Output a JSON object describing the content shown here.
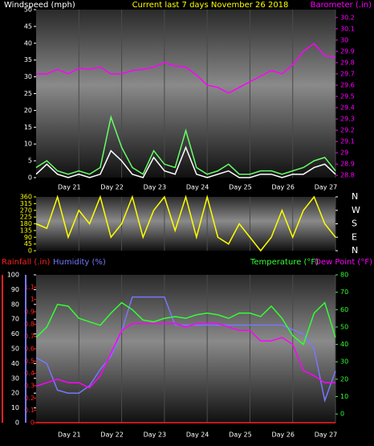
{
  "chart_data": [
    {
      "type": "line",
      "title": "Current last 7 days November 26 2018",
      "ylabel": "Windspeed (mph)",
      "x": [
        20,
        20.25,
        20.5,
        20.75,
        21,
        21.25,
        21.5,
        21.75,
        22,
        22.25,
        22.5,
        22.75,
        23,
        23.25,
        23.5,
        23.75,
        24,
        24.25,
        24.5,
        24.75,
        25,
        25.25,
        25.5,
        25.75,
        26,
        26.25,
        26.5,
        26.75,
        27
      ],
      "xlim": [
        20,
        27
      ],
      "xticks": [
        {
          "value": 21,
          "label": "Day 21"
        },
        {
          "value": 22,
          "label": "Day 22"
        },
        {
          "value": 23,
          "label": "Day 23"
        },
        {
          "value": 24,
          "label": "Day 24"
        },
        {
          "value": 25,
          "label": "Day 25"
        },
        {
          "value": 26,
          "label": "Day 26"
        },
        {
          "value": 27,
          "label": "Day 27"
        }
      ],
      "ylim": [
        0,
        50
      ],
      "yticks": [
        0,
        5,
        10,
        15,
        20,
        25,
        30,
        35,
        40,
        45,
        50
      ],
      "ycolor": "#ffffff",
      "y2lim": [
        28.78,
        30.27
      ],
      "y2ticks": [
        28.8,
        28.9,
        29,
        29.1,
        29.2,
        29.3,
        29.4,
        29.5,
        29.6,
        29.7,
        29.8,
        29.9,
        30,
        30.1,
        30.2
      ],
      "y2color": "#ff00ff",
      "series": [
        {
          "color": "#66ff66",
          "values": [
            3,
            5,
            2,
            1,
            2,
            1,
            3,
            18,
            9,
            3,
            1,
            8,
            4,
            3,
            14,
            3,
            1,
            2,
            4,
            1,
            1,
            2,
            2,
            1,
            2,
            3,
            5,
            6,
            2
          ]
        },
        {
          "color": "#ffffff",
          "values": [
            1,
            4,
            1,
            0,
            1,
            0,
            1,
            8,
            5,
            1,
            0,
            6,
            2,
            1,
            9,
            1,
            0,
            1,
            2,
            0,
            0,
            1,
            1,
            0,
            1,
            1,
            3,
            4,
            1
          ]
        },
        {
          "name": "Barometer (.in)",
          "color": "#ff00ff",
          "axis": "y2",
          "values": [
            29.7,
            29.7,
            29.74,
            29.7,
            29.75,
            29.74,
            29.76,
            29.7,
            29.7,
            29.73,
            29.74,
            29.76,
            29.8,
            29.77,
            29.76,
            29.69,
            29.6,
            29.58,
            29.53,
            29.58,
            29.63,
            29.68,
            29.73,
            29.7,
            29.78,
            29.9,
            29.97,
            29.86,
            29.85
          ]
        }
      ]
    },
    {
      "type": "line",
      "x": [
        20,
        20.25,
        20.5,
        20.75,
        21,
        21.25,
        21.5,
        21.75,
        22,
        22.25,
        22.5,
        22.75,
        23,
        23.25,
        23.5,
        23.75,
        24,
        24.25,
        24.5,
        24.75,
        25,
        25.25,
        25.5,
        25.75,
        26,
        26.25,
        26.5,
        26.75,
        27
      ],
      "xlim": [
        20,
        27
      ],
      "xticks": [
        21,
        22,
        23,
        24,
        25,
        26,
        27
      ],
      "ylim": [
        0,
        360
      ],
      "yticks": [
        0,
        45,
        90,
        135,
        180,
        225,
        270,
        315,
        360
      ],
      "ycolor": "#ffff00",
      "y2lim": [
        0,
        360
      ],
      "y2ticks": [
        {
          "value": 360,
          "label": "N"
        },
        {
          "value": 270,
          "label": "W"
        },
        {
          "value": 180,
          "label": "S"
        },
        {
          "value": 90,
          "label": "E"
        },
        {
          "value": 0,
          "label": "N"
        }
      ],
      "y2color": "#ffffff",
      "series": [
        {
          "color": "#ffff00",
          "values": [
            180,
            150,
            360,
            90,
            270,
            180,
            360,
            90,
            180,
            360,
            90,
            270,
            360,
            135,
            360,
            90,
            360,
            90,
            45,
            180,
            90,
            0,
            90,
            270,
            90,
            270,
            360,
            180,
            90
          ]
        }
      ]
    },
    {
      "type": "line",
      "x": [
        20,
        20.25,
        20.5,
        20.75,
        21,
        21.25,
        21.5,
        21.75,
        22,
        22.25,
        22.5,
        22.75,
        23,
        23.25,
        23.5,
        23.75,
        24,
        24.25,
        24.5,
        24.75,
        25,
        25.25,
        25.5,
        25.75,
        26,
        26.25,
        26.5,
        26.75,
        27
      ],
      "xlim": [
        20,
        27
      ],
      "xticks": [
        {
          "value": 21,
          "label": "Day 21"
        },
        {
          "value": 22,
          "label": "Day 22"
        },
        {
          "value": 23,
          "label": "Day 23"
        },
        {
          "value": 24,
          "label": "Day 24"
        },
        {
          "value": 25,
          "label": "Day 25"
        },
        {
          "value": 26,
          "label": "Day 26"
        },
        {
          "value": 27,
          "label": "Day 27"
        }
      ],
      "ylim": [
        0,
        100
      ],
      "yticks": [
        0,
        10,
        20,
        30,
        40,
        50,
        60,
        70,
        80,
        90,
        100
      ],
      "ycolor": "#ffffff",
      "y3lim": [
        0,
        1.2
      ],
      "y3ticks": [
        0,
        0.1,
        0.2,
        0.3,
        0.4,
        0.5,
        0.6,
        0.7,
        0.8,
        0.9,
        1,
        1.1
      ],
      "y3color": "#ff2020",
      "y2lim": [
        -5,
        80
      ],
      "y2ticks": [
        0,
        10,
        20,
        30,
        40,
        50,
        60,
        70,
        80
      ],
      "y2color": "#33ff33",
      "series": [
        {
          "name": "Rainfall (.in)",
          "color": "#ff2020",
          "axis": "y3",
          "values": [
            0,
            0,
            0,
            0,
            0,
            0,
            0,
            0,
            0,
            0,
            0,
            0,
            0,
            0,
            0,
            0,
            0,
            0,
            0,
            0,
            0,
            0,
            0,
            0,
            0,
            0,
            0,
            0,
            0
          ]
        },
        {
          "name": "Humidity (%)",
          "color": "#7777ff",
          "values": [
            44,
            40,
            22,
            20,
            20,
            25,
            36,
            45,
            62,
            85,
            85,
            85,
            85,
            66,
            66,
            66,
            66,
            66,
            66,
            66,
            66,
            66,
            66,
            66,
            63,
            60,
            50,
            15,
            35
          ]
        },
        {
          "name": "Temperature (°F)",
          "color": "#33ff33",
          "axis": "y2",
          "values": [
            44,
            50,
            63,
            62,
            55,
            53,
            51,
            58,
            64,
            60,
            54,
            53,
            55,
            56,
            55,
            57,
            58,
            57,
            55,
            58,
            58,
            56,
            62,
            55,
            45,
            40,
            58,
            64,
            44
          ]
        },
        {
          "name": "Dew Point (°F)",
          "color": "#ff00ff",
          "axis": "y2",
          "values": [
            16,
            18,
            20,
            18,
            18,
            15,
            22,
            35,
            48,
            52,
            52,
            52,
            52,
            52,
            50,
            52,
            52,
            52,
            50,
            48,
            48,
            42,
            42,
            44,
            40,
            25,
            22,
            18,
            18
          ]
        }
      ]
    }
  ]
}
